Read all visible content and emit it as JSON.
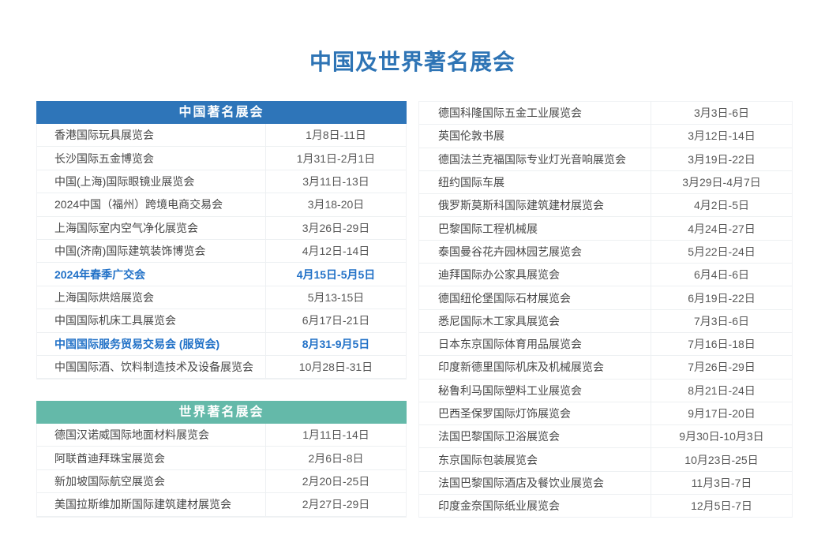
{
  "page": {
    "title": "中国及世界著名展会"
  },
  "colors": {
    "title_blue": "#2e74b5",
    "china_header_bg": "#2e75b9",
    "world_header_bg": "#64b9a9",
    "highlight_text": "#2171c7",
    "row_border": "#edf0f2"
  },
  "tables": {
    "china": {
      "header": "中国著名展会",
      "rows": [
        {
          "name": "香港国际玩具展览会",
          "date": "1月8日-11日"
        },
        {
          "name": "长沙国际五金博览会",
          "date": "1月31日-2月1日"
        },
        {
          "name": "中国(上海)国际眼镜业展览会",
          "date": "3月11日-13日"
        },
        {
          "name": "2024中国（福州）跨境电商交易会",
          "date": "3月18-20日"
        },
        {
          "name": "上海国际室内空气净化展览会",
          "date": "3月26日-29日"
        },
        {
          "name": "中国(济南)国际建筑装饰博览会",
          "date": "4月12日-14日"
        },
        {
          "name": "2024年春季广交会",
          "date": "4月15日-5月5日",
          "highlight": true
        },
        {
          "name": "上海国际烘焙展览会",
          "date": "5月13-15日"
        },
        {
          "name": "中国国际机床工具展览会",
          "date": "6月17日-21日"
        },
        {
          "name": "中国国际服务贸易交易会 (服贸会)",
          "date": "8月31-9月5日",
          "highlight": true
        },
        {
          "name": "中国国际酒、饮料制造技术及设备展览会",
          "date": "10月28日-31日"
        }
      ]
    },
    "world": {
      "header": "世界著名展会",
      "rows": [
        {
          "name": "德国汉诺威国际地面材料展览会",
          "date": "1月11日-14日"
        },
        {
          "name": "阿联酋迪拜珠宝展览会",
          "date": "2月6日-8日"
        },
        {
          "name": "新加坡国际航空展览会",
          "date": "2月20日-25日"
        },
        {
          "name": "美国拉斯维加斯国际建筑建材展览会",
          "date": "2月27日-29日"
        }
      ]
    },
    "world_continued": {
      "rows": [
        {
          "name": "德国科隆国际五金工业展览会",
          "date": "3月3日-6日"
        },
        {
          "name": "英国伦敦书展",
          "date": "3月12日-14日"
        },
        {
          "name": "德国法兰克福国际专业灯光音响展览会",
          "date": "3月19日-22日"
        },
        {
          "name": "纽约国际车展",
          "date": "3月29日-4月7日"
        },
        {
          "name": "俄罗斯莫斯科国际建筑建材展览会",
          "date": "4月2日-5日"
        },
        {
          "name": "巴黎国际工程机械展",
          "date": "4月24日-27日"
        },
        {
          "name": "泰国曼谷花卉园林园艺展览会",
          "date": "5月22日-24日"
        },
        {
          "name": "迪拜国际办公家具展览会",
          "date": "6月4日-6日"
        },
        {
          "name": "德国纽伦堡国际石材展览会",
          "date": "6月19日-22日"
        },
        {
          "name": "悉尼国际木工家具展览会",
          "date": "7月3日-6日"
        },
        {
          "name": "日本东京国际体育用品展览会",
          "date": "7月16日-18日"
        },
        {
          "name": "印度新德里国际机床及机械展览会",
          "date": "7月26日-29日"
        },
        {
          "name": "秘鲁利马国际塑料工业展览会",
          "date": "8月21日-24日"
        },
        {
          "name": "巴西圣保罗国际灯饰展览会",
          "date": "9月17日-20日"
        },
        {
          "name": "法国巴黎国际卫浴展览会",
          "date": "9月30日-10月3日"
        },
        {
          "name": "东京国际包装展览会",
          "date": "10月23日-25日"
        },
        {
          "name": "法国巴黎国际酒店及餐饮业展览会",
          "date": "11月3日-7日"
        },
        {
          "name": "印度金奈国际纸业展览会",
          "date": "12月5日-7日"
        }
      ]
    }
  }
}
